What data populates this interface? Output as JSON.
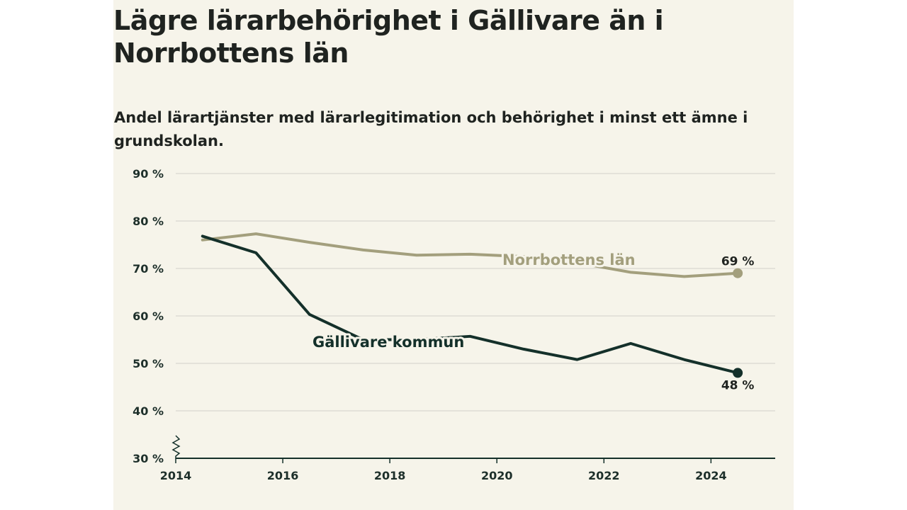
{
  "title": "Lägre lärarbehörighet i Gällivare än i Norrbottens län",
  "subtitle": "Andel lärartjänster med lärarlegitimation och behörighet i minst ett ämne i grundskolan.",
  "colors": {
    "background": "#f6f4ea",
    "norrbotten": "#a39f7d",
    "gallivare": "#14302a",
    "grid": "#dedcd5"
  },
  "chart_data": {
    "type": "line",
    "title": "Lägre lärarbehörighet i Gällivare än i Norrbottens län",
    "subtitle": "Andel lärartjänster med lärarlegitimation och behörighet i minst ett ämne i grundskolan.",
    "x_ticks": [
      "2014",
      "2016",
      "2018",
      "2020",
      "2022",
      "2024"
    ],
    "y_ticks": [
      "30 %",
      "40 %",
      "50 %",
      "60 %",
      "70 %",
      "80 %",
      "90 %"
    ],
    "xlim": [
      2014,
      2025.2
    ],
    "ylim": [
      30,
      90
    ],
    "y_axis_break": true,
    "grid": true,
    "series": [
      {
        "name": "Norrbottens län",
        "x": [
          2014.5,
          2015.5,
          2016.5,
          2017.5,
          2018.5,
          2019.5,
          2020.5,
          2021.5,
          2022.5,
          2023.5,
          2024.5
        ],
        "values": [
          76.0,
          77.3,
          75.5,
          73.9,
          72.8,
          73.0,
          72.5,
          71.2,
          69.2,
          68.3,
          69.0
        ],
        "end_label": "69 %"
      },
      {
        "name": "Gällivare kommun",
        "x": [
          2014.5,
          2015.5,
          2016.5,
          2017.5,
          2018.5,
          2019.5,
          2020.5,
          2021.5,
          2022.5,
          2023.5,
          2024.5
        ],
        "values": [
          76.8,
          73.3,
          60.3,
          55.0,
          55.0,
          55.7,
          53.0,
          50.8,
          54.2,
          50.8,
          48.0
        ],
        "end_label": "48 %"
      }
    ]
  }
}
